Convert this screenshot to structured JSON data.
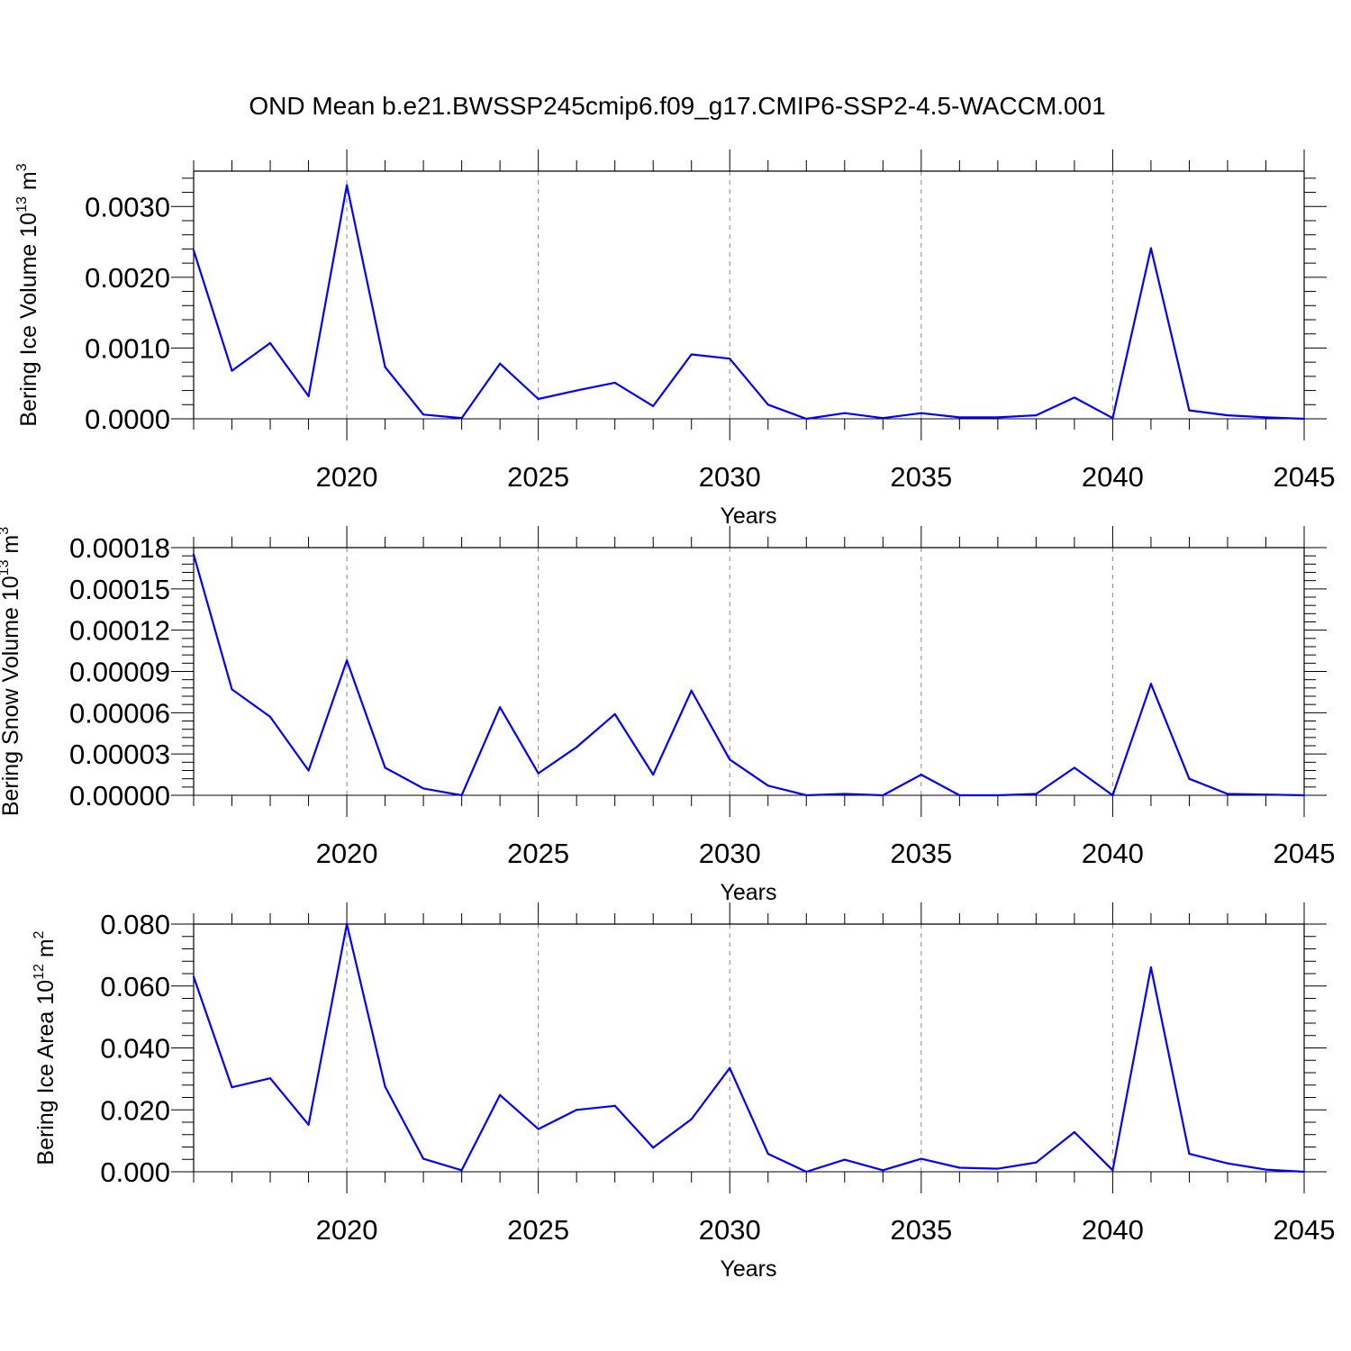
{
  "title": "OND Mean b.e21.BWSSP245cmip6.f09_g17.CMIP6-SSP2-4.5-WACCM.001",
  "line_color": "#0000ff",
  "chart_data": [
    {
      "type": "line",
      "ylabel": "Bering Ice Volume",
      "ylabel_unit": "10",
      "ylabel_exp": "13",
      "ylabel_unit2": " m",
      "ylabel_exp2": "3",
      "xlabel": "Years",
      "xlim": [
        2016,
        2045
      ],
      "ylim": [
        0,
        0.0035
      ],
      "yticks": [
        0,
        0.001,
        0.002,
        0.003
      ],
      "yticklabels": [
        "0.0000",
        "0.0010",
        "0.0020",
        "0.0030"
      ],
      "xticks": [
        2020,
        2025,
        2030,
        2035,
        2040,
        2045
      ],
      "xticklabels": [
        "2020",
        "2025",
        "2030",
        "2035",
        "2040",
        "2045"
      ],
      "x": [
        2016,
        2017,
        2018,
        2019,
        2020,
        2021,
        2022,
        2023,
        2024,
        2025,
        2026,
        2027,
        2028,
        2029,
        2030,
        2031,
        2032,
        2033,
        2034,
        2035,
        2036,
        2037,
        2038,
        2039,
        2040,
        2041,
        2042,
        2043,
        2044,
        2045
      ],
      "values": [
        0.00238,
        0.00068,
        0.00107,
        0.00032,
        0.0033,
        0.00073,
        6e-05,
        1e-05,
        0.00078,
        0.00028,
        0.0004,
        0.00051,
        0.00018,
        0.00091,
        0.00085,
        0.0002,
        0.0,
        8e-05,
        1e-05,
        8e-05,
        2e-05,
        2e-05,
        5e-05,
        0.0003,
        1e-05,
        0.00241,
        0.00012,
        5e-05,
        2e-05,
        0.0
      ]
    },
    {
      "type": "line",
      "ylabel": "Bering Snow Volume",
      "ylabel_unit": "10",
      "ylabel_exp": "13",
      "ylabel_unit2": " m",
      "ylabel_exp2": "3",
      "xlabel": "Years",
      "xlim": [
        2016,
        2045
      ],
      "ylim": [
        0,
        0.00018
      ],
      "yticks": [
        0,
        3e-05,
        6e-05,
        9e-05,
        0.00012,
        0.00015,
        0.00018
      ],
      "yticklabels": [
        "0.00000",
        "0.00003",
        "0.00006",
        "0.00009",
        "0.00012",
        "0.00015",
        "0.00018"
      ],
      "xticks": [
        2020,
        2025,
        2030,
        2035,
        2040,
        2045
      ],
      "xticklabels": [
        "2020",
        "2025",
        "2030",
        "2035",
        "2040",
        "2045"
      ],
      "x": [
        2016,
        2017,
        2018,
        2019,
        2020,
        2021,
        2022,
        2023,
        2024,
        2025,
        2026,
        2027,
        2028,
        2029,
        2030,
        2031,
        2032,
        2033,
        2034,
        2035,
        2036,
        2037,
        2038,
        2039,
        2040,
        2041,
        2042,
        2043,
        2044,
        2045
      ],
      "values": [
        0.000175,
        7.7e-05,
        5.7e-05,
        1.8e-05,
        9.8e-05,
        2e-05,
        5e-06,
        0.0,
        6.4e-05,
        1.6e-05,
        3.5e-05,
        5.9e-05,
        1.5e-05,
        7.6e-05,
        2.6e-05,
        7e-06,
        0.0,
        1e-06,
        0.0,
        1.5e-05,
        0.0,
        0.0,
        1e-06,
        2e-05,
        0.0,
        8.1e-05,
        1.2e-05,
        1e-06,
        5e-07,
        0.0
      ]
    },
    {
      "type": "line",
      "ylabel": "Bering Ice Area",
      "ylabel_unit": "10",
      "ylabel_exp": "12",
      "ylabel_unit2": " m",
      "ylabel_exp2": "2",
      "xlabel": "Years",
      "xlim": [
        2016,
        2045
      ],
      "ylim": [
        0,
        0.08
      ],
      "yticks": [
        0,
        0.02,
        0.04,
        0.06,
        0.08
      ],
      "yticklabels": [
        "0.000",
        "0.020",
        "0.040",
        "0.060",
        "0.080"
      ],
      "xticks": [
        2020,
        2025,
        2030,
        2035,
        2040,
        2045
      ],
      "xticklabels": [
        "2020",
        "2025",
        "2030",
        "2035",
        "2040",
        "2045"
      ],
      "x": [
        2016,
        2017,
        2018,
        2019,
        2020,
        2021,
        2022,
        2023,
        2024,
        2025,
        2026,
        2027,
        2028,
        2029,
        2030,
        2031,
        2032,
        2033,
        2034,
        2035,
        2036,
        2037,
        2038,
        2039,
        2040,
        2041,
        2042,
        2043,
        2044,
        2045
      ],
      "values": [
        0.063,
        0.0273,
        0.0302,
        0.0152,
        0.08,
        0.0275,
        0.0042,
        0.0005,
        0.0248,
        0.0138,
        0.02,
        0.0213,
        0.0078,
        0.017,
        0.0335,
        0.0058,
        0.0,
        0.0039,
        0.0005,
        0.0042,
        0.0013,
        0.001,
        0.003,
        0.0128,
        0.0005,
        0.066,
        0.0058,
        0.0027,
        0.0007,
        0.0
      ]
    }
  ]
}
